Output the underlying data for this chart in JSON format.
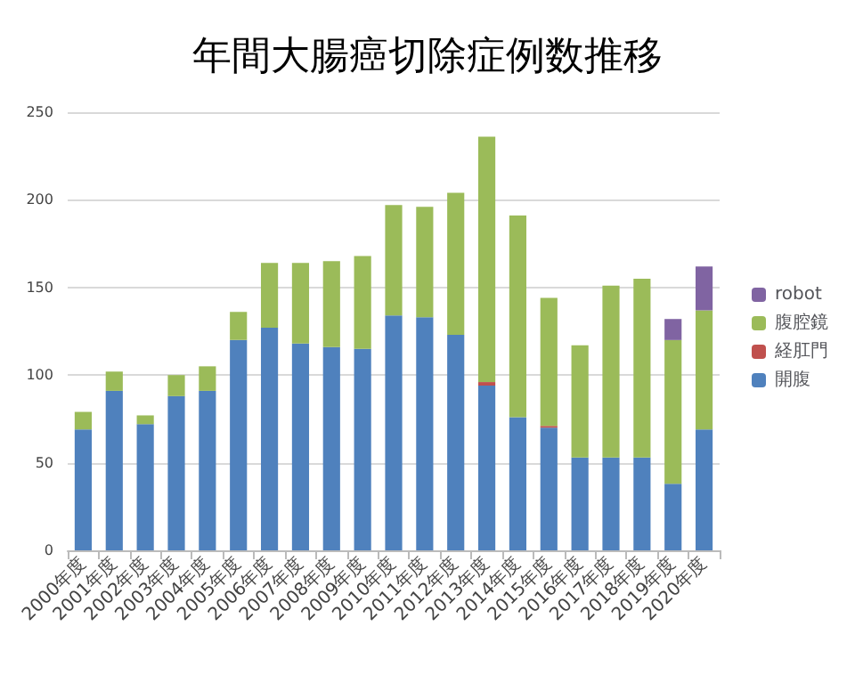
{
  "chart_data": {
    "type": "bar",
    "title": "年間大腸癌切除症例数推移",
    "stacked": true,
    "categories": [
      "2000年度",
      "2001年度",
      "2002年度",
      "2003年度",
      "2004年度",
      "2005年度",
      "2006年度",
      "2007年度",
      "2008年度",
      "2009年度",
      "2010年度",
      "2011年度",
      "2012年度",
      "2013年度",
      "2014年度",
      "2015年度",
      "2016年度",
      "2017年度",
      "2018年度",
      "2019年度",
      "2020年度"
    ],
    "series": [
      {
        "name": "開腹",
        "color": "#4f81bd",
        "values": [
          69,
          91,
          72,
          88,
          91,
          120,
          127,
          118,
          116,
          115,
          134,
          133,
          123,
          94,
          76,
          70,
          53,
          53,
          53,
          38,
          69
        ]
      },
      {
        "name": "経肛門",
        "color": "#c0504d",
        "values": [
          null,
          null,
          null,
          null,
          null,
          null,
          null,
          null,
          null,
          null,
          null,
          null,
          null,
          2,
          null,
          1,
          null,
          null,
          null,
          null,
          null
        ]
      },
      {
        "name": "腹腔鏡",
        "color": "#9bbb59",
        "values": [
          10,
          11,
          5,
          12,
          14,
          16,
          37,
          46,
          49,
          53,
          63,
          63,
          81,
          140,
          115,
          73,
          64,
          98,
          102,
          82,
          68
        ]
      },
      {
        "name": "robot",
        "color": "#8064a2",
        "values": [
          null,
          null,
          null,
          null,
          null,
          null,
          null,
          null,
          null,
          null,
          null,
          null,
          null,
          null,
          null,
          null,
          null,
          null,
          null,
          12,
          25
        ]
      }
    ],
    "ylim": [
      0,
      250
    ],
    "yticks": [
      0,
      50,
      100,
      150,
      200,
      250
    ],
    "grid": "y",
    "legend": "right"
  }
}
